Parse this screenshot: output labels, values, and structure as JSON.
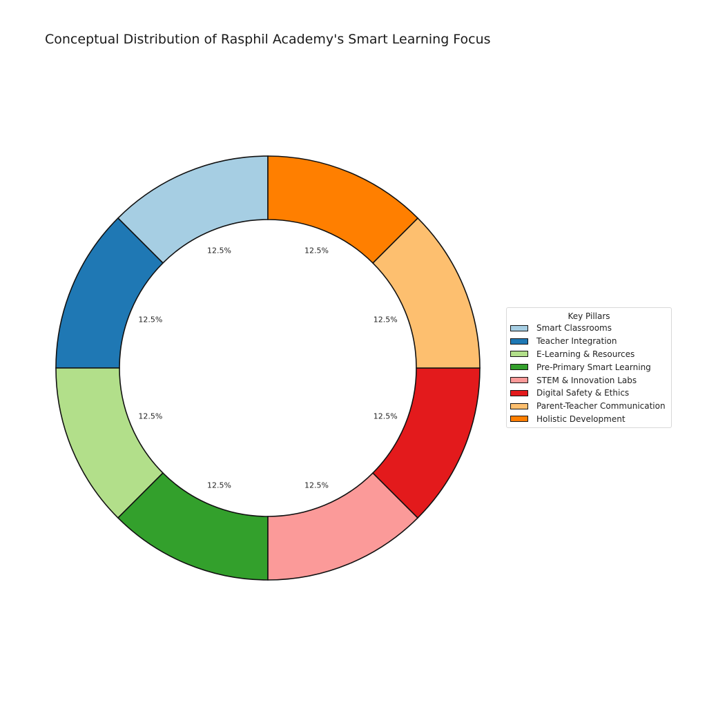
{
  "chart_data": {
    "type": "pie",
    "subtype": "donut",
    "title": "Conceptual Distribution of Rasphil Academy's Smart Learning Focus",
    "legend_title": "Key Pillars",
    "legend_position": "right",
    "categories": [
      "Smart Classrooms",
      "Teacher Integration",
      "E-Learning & Resources",
      "Pre-Primary Smart Learning",
      "STEM & Innovation Labs",
      "Digital Safety & Ethics",
      "Parent-Teacher Communication",
      "Holistic Development"
    ],
    "values": [
      12.5,
      12.5,
      12.5,
      12.5,
      12.5,
      12.5,
      12.5,
      12.5
    ],
    "labels": [
      "12.5%",
      "12.5%",
      "12.5%",
      "12.5%",
      "12.5%",
      "12.5%",
      "12.5%",
      "12.5%"
    ],
    "colors": [
      "#a6cee3",
      "#1f78b4",
      "#b2df8a",
      "#33a02c",
      "#fb9a99",
      "#e31a1c",
      "#fdbf6f",
      "#ff7f00"
    ],
    "start_angle": 90,
    "direction": "counterclockwise"
  }
}
